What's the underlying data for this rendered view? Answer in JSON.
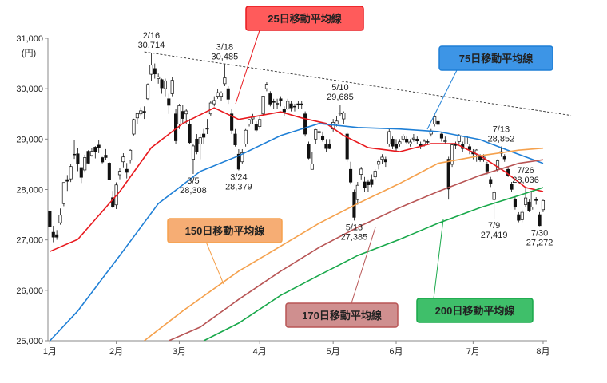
{
  "chart_data": {
    "type": "candlestick",
    "y_unit": "(円)",
    "open": [
      27575,
      27151,
      27103,
      27340,
      27720,
      28196,
      28211,
      28700,
      28708,
      28436,
      28388,
      28758,
      28675,
      28840,
      28881,
      28632,
      28680,
      28524,
      27838,
      27695,
      28293,
      28550,
      28401,
      28582,
      29100,
      29420,
      29500,
      29550,
      29800,
      30286,
      30400,
      30200,
      30180,
      30000,
      29800,
      29900,
      29500,
      29300,
      29550,
      29500,
      29300,
      28600,
      29000,
      28900,
      29100,
      29200,
      29500,
      29700,
      29850,
      29850,
      30100,
      30000,
      29500,
      29100,
      28700,
      28550,
      28900,
      29300,
      29400,
      29300,
      29250,
      29500,
      30000,
      29900,
      29750,
      29700,
      29800,
      29600,
      29600,
      29700,
      29650,
      29700,
      29700,
      29500,
      28900,
      28400,
      29000,
      29150,
      29050,
      28900,
      28900,
      29200,
      29300,
      29500,
      29400,
      29100,
      28400,
      27950,
      27800,
      28300,
      28150,
      28150,
      28200,
      28250,
      28500,
      28600,
      28600,
      28900,
      29000,
      28900,
      28900,
      29000,
      29000,
      28900,
      29000,
      29000,
      28900,
      28900,
      28950,
      29100,
      29300,
      29350,
      29100,
      28950,
      28600,
      28500,
      28900,
      28950,
      28900,
      28900,
      28850,
      28750,
      28700,
      28650,
      28600,
      28500,
      28200,
      27800,
      28400,
      28750,
      28650,
      28400,
      28100,
      27800,
      27500,
      27400,
      27700,
      27750,
      27650,
      27800,
      27500,
      27600
    ],
    "high": [
      27603,
      27279,
      27196,
      27624,
      28139,
      28287,
      28503,
      28979,
      28820,
      28438,
      28690,
      28779,
      28822,
      28860,
      28979,
      28648,
      28802,
      28545,
      27972,
      28143,
      28430,
      28720,
      28525,
      28800,
      29403,
      29522,
      29628,
      29650,
      30106,
      30714,
      30500,
      30300,
      30200,
      30200,
      29900,
      30240,
      29600,
      29700,
      29680,
      29600,
      29400,
      28900,
      29100,
      29100,
      29200,
      29400,
      29750,
      29850,
      30000,
      29950,
      30485,
      30050,
      29600,
      29200,
      28800,
      28800,
      29200,
      29400,
      29500,
      29350,
      29450,
      29860,
      30130,
      29950,
      29800,
      29800,
      29850,
      29650,
      29800,
      29750,
      29700,
      29750,
      29750,
      29550,
      28950,
      28750,
      29200,
      29200,
      29150,
      29000,
      29000,
      29400,
      29450,
      29685,
      29550,
      29150,
      28550,
      28000,
      28150,
      28450,
      28250,
      28200,
      28300,
      28400,
      28600,
      28700,
      28650,
      29200,
      29050,
      29000,
      29000,
      29100,
      29050,
      29000,
      29100,
      29050,
      28950,
      29000,
      29000,
      29200,
      29480,
      29400,
      29150,
      29050,
      28650,
      28900,
      28950,
      29100,
      28950,
      29100,
      28900,
      28800,
      28800,
      28700,
      28700,
      28550,
      28250,
      28000,
      28600,
      28852,
      28700,
      28450,
      28150,
      27850,
      27550,
      27600,
      28036,
      27800,
      27980,
      27850,
      27550,
      27800
    ],
    "low": [
      27002,
      26954,
      27002,
      27301,
      27667,
      27972,
      28148,
      28608,
      28365,
      28129,
      28336,
      28500,
      28654,
      28617,
      28723,
      28519,
      28592,
      28197,
      27629,
      27613,
      28203,
      28440,
      28220,
      28520,
      29073,
      29300,
      29450,
      29400,
      29780,
      30152,
      30200,
      30100,
      29900,
      29850,
      29500,
      29850,
      28900,
      29200,
      29300,
      29300,
      28900,
      28308,
      28700,
      28600,
      28900,
      29100,
      29450,
      29650,
      29800,
      29750,
      30050,
      29700,
      29100,
      28850,
      28379,
      28500,
      28850,
      29250,
      29300,
      29150,
      29200,
      29480,
      29950,
      29650,
      29600,
      29600,
      29650,
      29450,
      29580,
      29550,
      29550,
      29600,
      29600,
      29050,
      28600,
      28400,
      28900,
      29000,
      28950,
      28750,
      28800,
      29150,
      29250,
      29450,
      29300,
      28550,
      28100,
      27385,
      27700,
      28200,
      27950,
      27950,
      28050,
      28200,
      28400,
      28500,
      28450,
      28850,
      28800,
      28750,
      28850,
      28950,
      28900,
      28850,
      28950,
      28900,
      28800,
      28850,
      28900,
      29050,
      29250,
      29250,
      28950,
      28900,
      27800,
      28450,
      28800,
      28900,
      28750,
      28850,
      28700,
      28600,
      28550,
      28550,
      28550,
      28300,
      28050,
      27419,
      28350,
      28650,
      28550,
      28250,
      27950,
      27600,
      27350,
      27350,
      27650,
      27550,
      27600,
      27700,
      27272,
      27550
    ],
    "close": [
      27258,
      27056,
      27055,
      27490,
      28139,
      28164,
      28456,
      28698,
      28519,
      28242,
      28633,
      28523,
      28757,
      28756,
      28822,
      28546,
      28635,
      28197,
      27663,
      28091,
      28362,
      28646,
      28341,
      28779,
      29388,
      29505,
      29562,
      29520,
      30084,
      30467,
      30292,
      30236,
      30017,
      30156,
      29671,
      30168,
      28966,
      29663,
      29408,
      29559,
      28930,
      28864,
      28743,
      29027,
      29036,
      29211,
      29717,
      29766,
      29921,
      29914,
      30216,
      29792,
      29174,
      28885,
      28405,
      28729,
      29176,
      29385,
      29432,
      29179,
      29389,
      29854,
      30089,
      29696,
      29730,
      29709,
      29768,
      29539,
      29751,
      29621,
      29643,
      29683,
      29685,
      29100,
      28621,
      28508,
      29188,
      29126,
      28991,
      28813,
      28812,
      29331,
      29357,
      29518,
      29518,
      28608,
      28147,
      27448,
      28084,
      28406,
      28044,
      28093,
      28098,
      28364,
      28553,
      28642,
      28549,
      29149,
      28860,
      28814,
      28946,
      29058,
      28941,
      28942,
      29019,
      28963,
      28860,
      28958,
      28948,
      29161,
      29441,
      29291,
      29018,
      28964,
      28010,
      28884,
      28874,
      29066,
      28812,
      29048,
      28791,
      28707,
      28783,
      28598,
      28643,
      28366,
      28118,
      27940,
      28569,
      28718,
      28608,
      28279,
      28003,
      27652,
      27388,
      27548,
      27833,
      27581,
      27970,
      27782,
      27283,
      27781
    ],
    "up_color": "#ffffff",
    "down_color": "#111111",
    "series": [
      {
        "name": "25日移動平均線",
        "color": "#e8191e",
        "x": [
          0,
          8,
          20,
          29,
          38,
          47,
          54,
          66,
          72,
          79,
          84,
          91,
          100,
          109,
          116,
          123,
          130,
          136,
          141
        ],
        "values": [
          26770,
          27010,
          27960,
          28830,
          29310,
          29620,
          29390,
          29540,
          29420,
          29310,
          29070,
          28830,
          28750,
          28910,
          28910,
          28670,
          28360,
          28040,
          27960
        ]
      },
      {
        "name": "75日移動平均線",
        "color": "#1e7fd6",
        "x": [
          0,
          8,
          20,
          31,
          43,
          54,
          66,
          77,
          88,
          100,
          111,
          123,
          132,
          141
        ],
        "values": [
          25000,
          25590,
          26690,
          27720,
          28360,
          28670,
          29070,
          29310,
          29230,
          29200,
          29150,
          28990,
          28750,
          28520
        ]
      },
      {
        "name": "150日移動平均線",
        "color": "#f5a14d",
        "x": [
          27,
          38,
          54,
          77,
          88,
          100,
          111,
          123,
          134,
          141
        ],
        "values": [
          25000,
          25590,
          26380,
          27330,
          27720,
          28120,
          28520,
          28670,
          28780,
          28820
        ]
      },
      {
        "name": "170日移動平均線",
        "color": "#b85555",
        "x": [
          34,
          43,
          54,
          66,
          77,
          88,
          100,
          111,
          123,
          134,
          141
        ],
        "values": [
          25000,
          25270,
          25820,
          26380,
          26850,
          27250,
          27640,
          27960,
          28280,
          28520,
          28590
        ]
      },
      {
        "name": "200日移動平均線",
        "color": "#18a84a",
        "x": [
          44,
          54,
          66,
          77,
          88,
          100,
          111,
          123,
          134,
          141
        ],
        "values": [
          25000,
          25350,
          25900,
          26300,
          26690,
          27010,
          27330,
          27640,
          27880,
          28040
        ]
      }
    ],
    "trend_line": {
      "x": [
        27,
        149
      ],
      "values": [
        30730,
        29470
      ]
    },
    "annotations": [
      {
        "date": "2/16",
        "price": 30714,
        "price_label": "30,714"
      },
      {
        "date": "3/18",
        "price": 30485,
        "price_label": "30,485"
      },
      {
        "date": "3/5",
        "price": 28308,
        "price_label": "28,308"
      },
      {
        "date": "3/24",
        "price": 28379,
        "price_label": "28,379"
      },
      {
        "date": "5/10",
        "price": 29685,
        "price_label": "29,685"
      },
      {
        "date": "5/13",
        "price": 27385,
        "price_label": "27,385"
      },
      {
        "date": "7/13",
        "price": 28852,
        "price_label": "28,852"
      },
      {
        "date": "7/9",
        "price": 27419,
        "price_label": "27,419"
      },
      {
        "date": "7/26",
        "price": 28036,
        "price_label": "28,036"
      },
      {
        "date": "7/30",
        "price": 27272,
        "price_label": "27,272"
      }
    ],
    "xlim": [
      -1,
      149
    ],
    "xticks": [
      {
        "value": 0,
        "label": "1月"
      },
      {
        "value": 19,
        "label": "2月"
      },
      {
        "value": 37,
        "label": "3月"
      },
      {
        "value": 60,
        "label": "4月"
      },
      {
        "value": 81,
        "label": "5月"
      },
      {
        "value": 99,
        "label": "6月"
      },
      {
        "value": 121,
        "label": "7月"
      },
      {
        "value": 141,
        "label": "8月"
      }
    ],
    "ylim": [
      25000,
      31000
    ],
    "yticks": [
      {
        "value": 25000,
        "label": "25,000"
      },
      {
        "value": 26000,
        "label": "26,000"
      },
      {
        "value": 27000,
        "label": "27,000"
      },
      {
        "value": 28000,
        "label": "28,000"
      },
      {
        "value": 29000,
        "label": "29,000"
      },
      {
        "value": 30000,
        "label": "30,000"
      },
      {
        "value": 31000,
        "label": "31,000"
      }
    ]
  }
}
